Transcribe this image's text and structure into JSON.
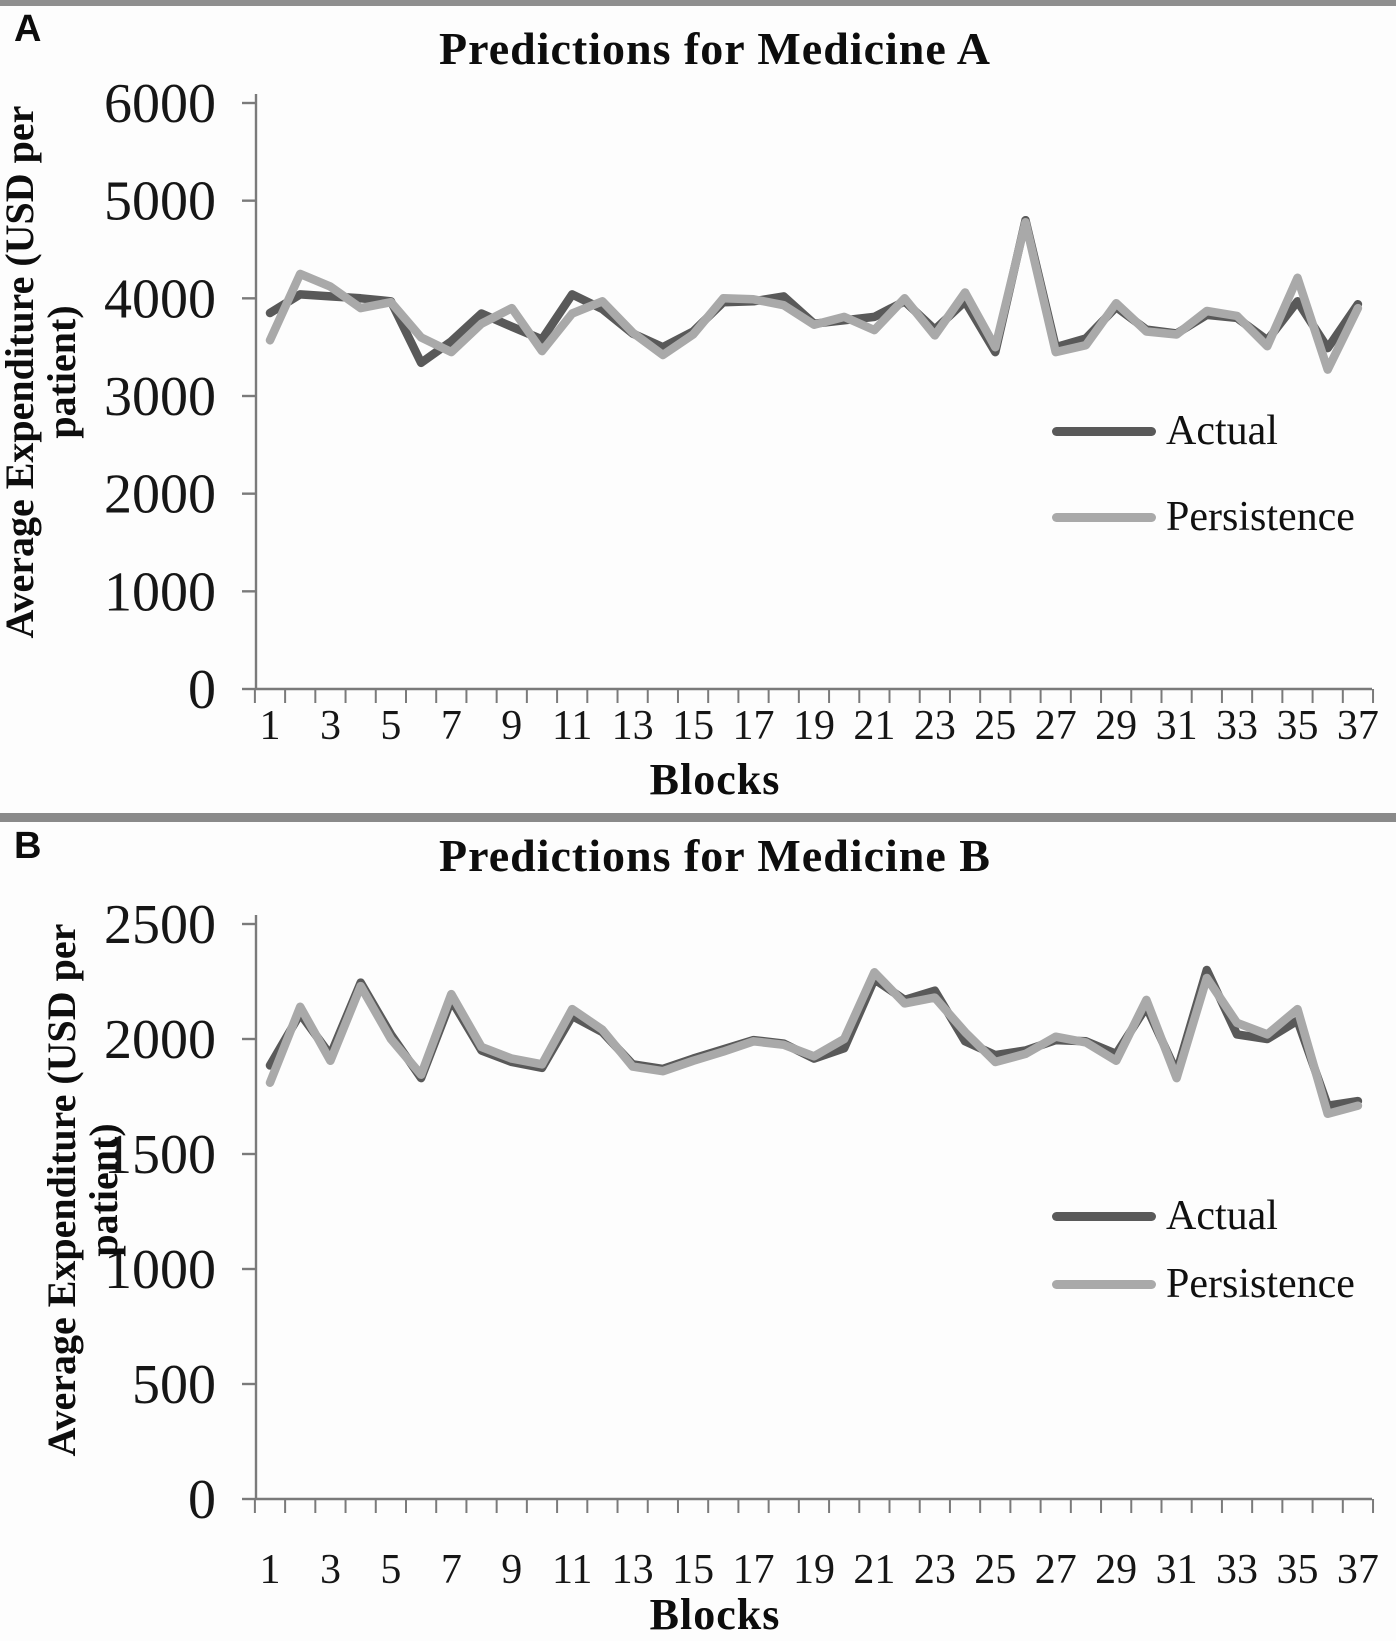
{
  "page": {
    "top_bar_color": "#8f8f8f",
    "divider_color": "#8a8a8a",
    "background": "#fdfdfd"
  },
  "colors": {
    "actual": "#595959",
    "persistence": "#a9a9a9",
    "axis": "#7a7a7a",
    "text": "#161616"
  },
  "panels": [
    {
      "letter": "A",
      "y_axis_title_line1": "Average Expenditure (USD per",
      "y_axis_title_line2": "patient)"
    },
    {
      "letter": "B",
      "y_axis_title_line1": "Average Expenditure (USD per",
      "y_axis_title_line2": "patient)"
    }
  ],
  "chart_data": [
    {
      "type": "line",
      "title": "Predictions for Medicine A",
      "xlabel": "Blocks",
      "ylabel": "Average Expenditure (USD per patient)",
      "ylim": [
        0,
        6000
      ],
      "y_ticks": [
        0,
        1000,
        2000,
        3000,
        4000,
        5000,
        6000
      ],
      "x": [
        1,
        2,
        3,
        4,
        5,
        6,
        7,
        8,
        9,
        10,
        11,
        12,
        13,
        14,
        15,
        16,
        17,
        18,
        19,
        20,
        21,
        22,
        23,
        24,
        25,
        26,
        27,
        28,
        29,
        30,
        31,
        32,
        33,
        34,
        35,
        36,
        37
      ],
      "x_tick_labels": [
        1,
        3,
        5,
        7,
        9,
        11,
        13,
        15,
        17,
        19,
        21,
        23,
        25,
        27,
        29,
        31,
        33,
        35,
        37
      ],
      "grid": false,
      "legend_position": "middle-right",
      "series": [
        {
          "name": "Actual",
          "color": "#595959",
          "values": [
            3850,
            4040,
            4020,
            4000,
            3970,
            3340,
            3560,
            3845,
            3710,
            3580,
            4040,
            3890,
            3640,
            3500,
            3660,
            3960,
            3970,
            4020,
            3740,
            3775,
            3810,
            3970,
            3680,
            3970,
            3450,
            4800,
            3500,
            3590,
            3910,
            3680,
            3640,
            3830,
            3800,
            3570,
            3970,
            3490,
            3940
          ]
        },
        {
          "name": "Persistence",
          "color": "#a9a9a9",
          "values": [
            3570,
            4250,
            4120,
            3900,
            3960,
            3600,
            3450,
            3740,
            3900,
            3460,
            3845,
            3970,
            3650,
            3420,
            3630,
            4000,
            3990,
            3930,
            3730,
            3810,
            3675,
            4000,
            3620,
            4060,
            3500,
            4780,
            3450,
            3520,
            3950,
            3660,
            3630,
            3870,
            3820,
            3510,
            4210,
            3270,
            3900
          ]
        }
      ]
    },
    {
      "type": "line",
      "title": "Predictions for Medicine B",
      "xlabel": "Blocks",
      "ylabel": "Average Expenditure (USD per patient)",
      "ylim": [
        0,
        2500
      ],
      "y_ticks": [
        0,
        500,
        1000,
        1500,
        2000,
        2500
      ],
      "x": [
        1,
        2,
        3,
        4,
        5,
        6,
        7,
        8,
        9,
        10,
        11,
        12,
        13,
        14,
        15,
        16,
        17,
        18,
        19,
        20,
        21,
        22,
        23,
        24,
        25,
        26,
        27,
        28,
        29,
        30,
        31,
        32,
        33,
        34,
        35,
        36,
        37
      ],
      "x_tick_labels": [
        1,
        3,
        5,
        7,
        9,
        11,
        13,
        15,
        17,
        19,
        21,
        23,
        25,
        27,
        29,
        31,
        33,
        35,
        37
      ],
      "grid": false,
      "legend_position": "middle-right",
      "series": [
        {
          "name": "Actual",
          "color": "#595959",
          "values": [
            1885,
            2110,
            1930,
            2245,
            2020,
            1830,
            2170,
            1950,
            1900,
            1875,
            2100,
            2030,
            1890,
            1870,
            1915,
            1955,
            1995,
            1980,
            1915,
            1960,
            2260,
            2170,
            2210,
            1990,
            1930,
            1950,
            1995,
            1990,
            1935,
            2140,
            1855,
            2300,
            2020,
            2000,
            2080,
            1710,
            1730
          ]
        },
        {
          "name": "Persistence",
          "color": "#a9a9a9",
          "values": [
            1810,
            2140,
            1905,
            2230,
            2000,
            1845,
            2195,
            1965,
            1915,
            1890,
            2130,
            2040,
            1880,
            1860,
            1905,
            1945,
            1990,
            1975,
            1925,
            2000,
            2290,
            2155,
            2180,
            2030,
            1900,
            1935,
            2010,
            1985,
            1905,
            2170,
            1830,
            2265,
            2070,
            2020,
            2130,
            1675,
            1710
          ]
        }
      ]
    }
  ]
}
